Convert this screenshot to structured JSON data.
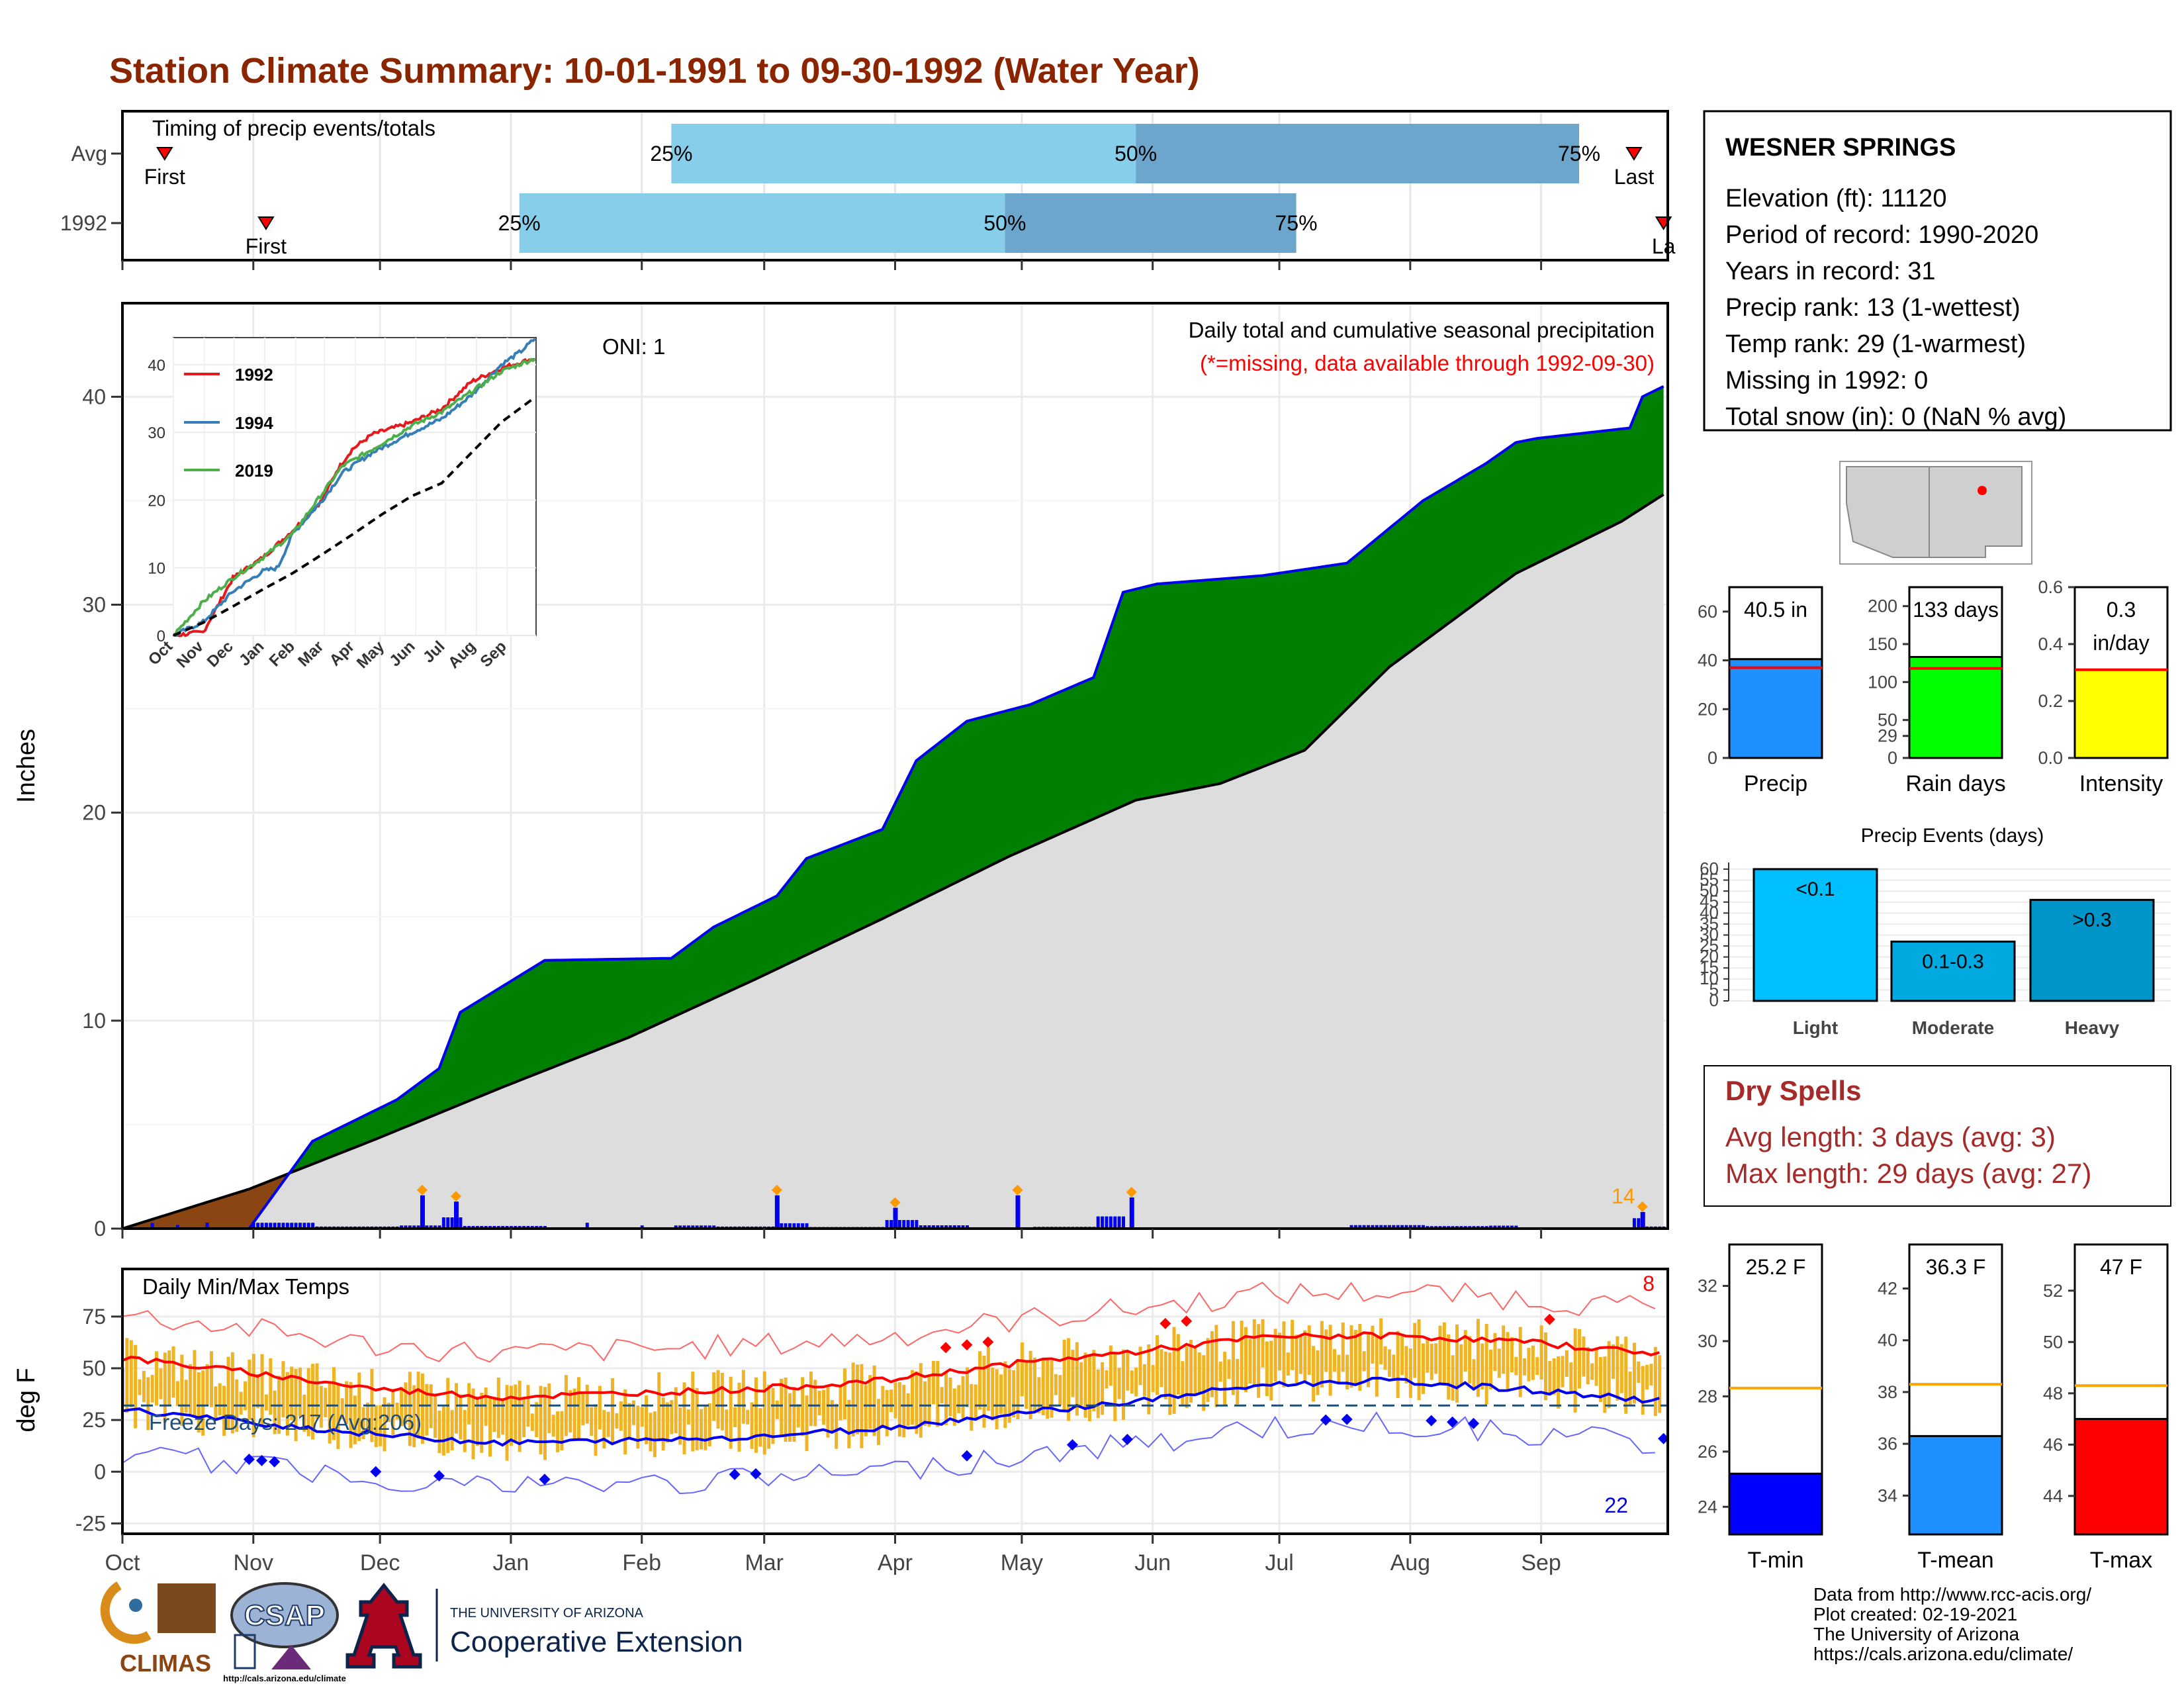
{
  "title": "Station Climate Summary: 10-01-1991 to 09-30-1992 (Water Year)",
  "colors": {
    "title": "#8B2500",
    "accum": "#008000",
    "avgfill": "#DDDDDD",
    "blue": "#0000EE",
    "orange": "#FF9900",
    "drought": "#8B4513",
    "light": "#00BFFF",
    "moderate": "#00A9E0",
    "heavy": "#0095C8",
    "precip": "#1E90FF",
    "raindays": "#00FF00",
    "intensity": "#FFFF00",
    "tmin": "#0000FF",
    "tmean": "#1E90FF",
    "tmax": "#FF0000",
    "refline": "#FFA500",
    "dryspell": "#A52A2A"
  },
  "timing": {
    "label": "Timing of precip events/totals",
    "rows": [
      {
        "name": "Avg",
        "first_label": "First",
        "last_label": "Last",
        "first_day": 10,
        "last_day": 358,
        "q25_day": 130,
        "q50_day": 240,
        "q75_day": 345
      },
      {
        "name": "1992",
        "first_label": "First",
        "last_label": "La",
        "first_day": 34,
        "last_day": 365,
        "q25_day": 94,
        "q50_day": 209,
        "q75_day": 278
      }
    ],
    "q_labels": [
      "25%",
      "50%",
      "75%"
    ],
    "x_breaks_days": [
      0,
      31,
      61,
      92,
      123,
      152,
      183,
      213,
      244,
      274,
      305,
      336
    ]
  },
  "main_panel": {
    "ylabel": "Inches",
    "oni": "ONI: 1",
    "subtitle": "Daily total and cumulative seasonal precipitation",
    "missing_note": "(*=missing, data available through 1992-09-30)",
    "max_daily_label": "14",
    "y_ticks": [
      "0",
      "10",
      "20",
      "30",
      "40"
    ]
  },
  "chart_data": [
    {
      "type": "area",
      "name": "cumulative precipitation",
      "ylim": [
        0,
        44.5
      ],
      "x_unit": "day of water year",
      "avg_cumulative": [
        [
          0,
          0
        ],
        [
          30,
          1.9
        ],
        [
          60,
          4.3
        ],
        [
          90,
          6.8
        ],
        [
          120,
          9.2
        ],
        [
          150,
          12.0
        ],
        [
          180,
          14.9
        ],
        [
          210,
          17.9
        ],
        [
          240,
          20.6
        ],
        [
          260,
          21.4
        ],
        [
          280,
          23.0
        ],
        [
          300,
          27.0
        ],
        [
          330,
          31.5
        ],
        [
          355,
          34.0
        ],
        [
          365,
          35.3
        ]
      ],
      "observed_cumulative_1992": [
        [
          0,
          0
        ],
        [
          30,
          0
        ],
        [
          45,
          4.2
        ],
        [
          65,
          6.2
        ],
        [
          75,
          7.7
        ],
        [
          80,
          10.4
        ],
        [
          100,
          12.9
        ],
        [
          130,
          13.0
        ],
        [
          140,
          14.5
        ],
        [
          155,
          16.0
        ],
        [
          162,
          17.8
        ],
        [
          180,
          19.2
        ],
        [
          188,
          22.5
        ],
        [
          200,
          24.4
        ],
        [
          215,
          25.2
        ],
        [
          230,
          26.5
        ],
        [
          237,
          30.6
        ],
        [
          245,
          31.0
        ],
        [
          270,
          31.4
        ],
        [
          290,
          32.0
        ],
        [
          308,
          35.0
        ],
        [
          323,
          36.8
        ],
        [
          330,
          37.8
        ],
        [
          335,
          38.0
        ],
        [
          357,
          38.5
        ],
        [
          360,
          40.0
        ],
        [
          365,
          40.5
        ]
      ],
      "big_daily_events_in": [
        [
          71,
          1.6
        ],
        [
          79,
          1.3
        ],
        [
          155,
          1.6
        ],
        [
          183,
          1.0
        ],
        [
          212,
          1.6
        ],
        [
          239,
          1.5
        ],
        [
          360,
          0.8
        ]
      ]
    },
    {
      "type": "line",
      "name": "inset cumulative comparison",
      "title": "",
      "series": [
        {
          "name": "1992",
          "color": "#E41A1C",
          "values": [
            [
              0,
              0
            ],
            [
              30,
              0.5
            ],
            [
              45,
              4.5
            ],
            [
              60,
              8.5
            ],
            [
              90,
              11.5
            ],
            [
              120,
              15.5
            ],
            [
              150,
              20
            ],
            [
              165,
              24.5
            ],
            [
              180,
              27.5
            ],
            [
              200,
              29.7
            ],
            [
              240,
              31.5
            ],
            [
              270,
              33.5
            ],
            [
              300,
              37.5
            ],
            [
              330,
              39.5
            ],
            [
              365,
              41
            ]
          ]
        },
        {
          "name": "1994",
          "color": "#377EB8",
          "values": [
            [
              0,
              0
            ],
            [
              30,
              2
            ],
            [
              60,
              6.5
            ],
            [
              90,
              9.5
            ],
            [
              105,
              10
            ],
            [
              120,
              15
            ],
            [
              150,
              20
            ],
            [
              170,
              24
            ],
            [
              200,
              27
            ],
            [
              240,
              30
            ],
            [
              270,
              32
            ],
            [
              300,
              35.5
            ],
            [
              330,
              40
            ],
            [
              350,
              42
            ],
            [
              365,
              44
            ]
          ]
        },
        {
          "name": "2019",
          "color": "#4DAF4A",
          "values": [
            [
              0,
              0
            ],
            [
              30,
              5
            ],
            [
              60,
              8.5
            ],
            [
              90,
              11.5
            ],
            [
              120,
              15
            ],
            [
              150,
              21
            ],
            [
              170,
              25
            ],
            [
              200,
              27.5
            ],
            [
              240,
              31
            ],
            [
              270,
              33
            ],
            [
              300,
              36
            ],
            [
              330,
              39
            ],
            [
              365,
              41
            ]
          ]
        },
        {
          "name": "avg",
          "color": "#000000",
          "values": [
            [
              0,
              0
            ],
            [
              30,
              1.9
            ],
            [
              60,
              4.3
            ],
            [
              90,
              6.8
            ],
            [
              120,
              9.2
            ],
            [
              150,
              12
            ],
            [
              180,
              14.9
            ],
            [
              210,
              17.9
            ],
            [
              240,
              20.6
            ],
            [
              270,
              22.5
            ],
            [
              300,
              27
            ],
            [
              330,
              31.5
            ],
            [
              365,
              35.3
            ]
          ]
        }
      ],
      "ylim": [
        0,
        44
      ],
      "y_ticks": [
        "0",
        "10",
        "20",
        "30",
        "40"
      ],
      "x_ticks": [
        "Oct",
        "Nov",
        "Dec",
        "Jan",
        "Feb",
        "Mar",
        "Apr",
        "May",
        "Jun",
        "Jul",
        "Aug",
        "Sep"
      ]
    },
    {
      "type": "bar",
      "name": "Precip summary",
      "categories": [
        "Precip",
        "Rain days",
        "Intensity"
      ],
      "values": [
        40.5,
        133,
        0.31
      ],
      "averages": [
        37,
        118,
        0.31
      ],
      "value_labels": [
        "40.5 in",
        "133 days",
        "0.3 in/day"
      ],
      "ylims": [
        [
          0,
          70
        ],
        [
          0,
          225
        ],
        [
          0,
          0.6
        ]
      ],
      "y_ticks": [
        [
          "0",
          "20",
          "40",
          "60"
        ],
        [
          "0",
          "50",
          "100",
          "150",
          "200"
        ],
        [
          "0.0",
          "0.2",
          "0.4",
          "0.6"
        ]
      ],
      "y_tick_values": [
        [
          0,
          20,
          40,
          60
        ],
        [
          0,
          50,
          100,
          150,
          200
        ],
        [
          0,
          0.2,
          0.4,
          0.6
        ]
      ],
      "extra_tick": {
        "axis": 1,
        "value": 29,
        "label": "29"
      }
    },
    {
      "type": "bar",
      "name": "Precip Events",
      "title": "Precip Events (days)",
      "categories": [
        "Light",
        "Moderate",
        "Heavy"
      ],
      "values": [
        60,
        27,
        46
      ],
      "bar_labels": [
        "<0.1",
        "0.1-0.3",
        ">0.3"
      ],
      "ylim": [
        0,
        63
      ],
      "y_ticks": [
        "0",
        "5",
        "10",
        "15",
        "20",
        "25",
        "30",
        "35",
        "40",
        "45",
        "50",
        "55",
        "60"
      ]
    },
    {
      "type": "bar",
      "name": "Temperature summary",
      "categories": [
        "T-min",
        "T-mean",
        "T-max"
      ],
      "values": [
        25.2,
        36.3,
        47
      ],
      "averages": [
        28.3,
        38.3,
        48.3
      ],
      "value_labels": [
        "25.2 F",
        "36.3 F",
        "47 F"
      ],
      "ylims": [
        [
          23,
          33.5
        ],
        [
          32.5,
          43.7
        ],
        [
          42.5,
          53.8
        ]
      ],
      "y_ticks": [
        [
          "24",
          "26",
          "28",
          "30",
          "32"
        ],
        [
          "34",
          "36",
          "38",
          "40",
          "42"
        ],
        [
          "44",
          "46",
          "48",
          "50",
          "52"
        ]
      ],
      "y_tick_values": [
        [
          24,
          26,
          28,
          30,
          32
        ],
        [
          34,
          36,
          38,
          40,
          42
        ],
        [
          44,
          46,
          48,
          50,
          52
        ]
      ]
    },
    {
      "type": "line",
      "name": "Daily Min/Max Temps",
      "ylim": [
        -30,
        98
      ],
      "y_ticks": [
        "-25",
        "0",
        "25",
        "50",
        "75"
      ],
      "x_ticks": [
        "Oct",
        "Nov",
        "Dec",
        "Jan",
        "Feb",
        "Mar",
        "Apr",
        "May",
        "Jun",
        "Jul",
        "Aug",
        "Sep"
      ],
      "avg_max": [
        [
          0,
          55
        ],
        [
          30,
          48
        ],
        [
          60,
          40
        ],
        [
          90,
          36
        ],
        [
          120,
          38
        ],
        [
          150,
          40
        ],
        [
          180,
          44
        ],
        [
          210,
          52
        ],
        [
          240,
          58
        ],
        [
          270,
          65
        ],
        [
          300,
          66
        ],
        [
          330,
          63
        ],
        [
          365,
          57
        ]
      ],
      "avg_min": [
        [
          0,
          30
        ],
        [
          30,
          24
        ],
        [
          60,
          18
        ],
        [
          90,
          14
        ],
        [
          120,
          15
        ],
        [
          150,
          17
        ],
        [
          180,
          21
        ],
        [
          210,
          28
        ],
        [
          240,
          34
        ],
        [
          270,
          42
        ],
        [
          300,
          44
        ],
        [
          330,
          40
        ],
        [
          365,
          34
        ]
      ],
      "freeze_line": 32
    }
  ],
  "temp_panel": {
    "label": "Daily Min/Max Temps",
    "freeze_label": "Freeze Days: 217 (Avg:206)",
    "ylabel": "deg F",
    "record_high_count": "8",
    "record_low_count": "22"
  },
  "station": {
    "name": "WESNER SPRINGS",
    "lines": [
      "Elevation (ft): 11120",
      "Period of record: 1990-2020",
      "Years in record: 31",
      "Precip rank: 13 (1-wettest)",
      "Temp rank: 29 (1-warmest)",
      "Missing in 1992: 0",
      "Total snow (in): 0 (NaN % avg)"
    ]
  },
  "dry_spells": {
    "title": "Dry Spells",
    "lines": [
      "Avg length: 3 days (avg: 3)",
      "Max length: 29 days (avg: 27)"
    ]
  },
  "footer": {
    "credits": [
      "Data from http://www.rcc-acis.org/",
      "Plot created: 02-19-2021",
      "The University of Arizona",
      "https://cals.arizona.edu/climate/"
    ],
    "climas": "CLIMAS",
    "csap": "CSAP",
    "csap_url": "http://cals.arizona.edu/climate",
    "ua_top": "THE UNIVERSITY OF ARIZONA",
    "ua_bottom": "Cooperative Extension"
  }
}
